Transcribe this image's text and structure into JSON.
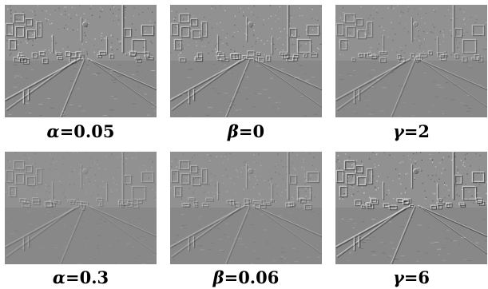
{
  "panels": [
    {
      "symbol": "α",
      "value": "=0.05",
      "contrast": 0.9
    },
    {
      "symbol": "β",
      "value": "=0",
      "contrast": 0.8
    },
    {
      "symbol": "γ",
      "value": "=2",
      "contrast": 0.65
    },
    {
      "symbol": "α",
      "value": "=0.3",
      "contrast": 0.4
    },
    {
      "symbol": "β",
      "value": "=0.06",
      "contrast": 0.55
    },
    {
      "symbol": "γ",
      "value": "=6",
      "contrast": 1.0
    }
  ]
}
